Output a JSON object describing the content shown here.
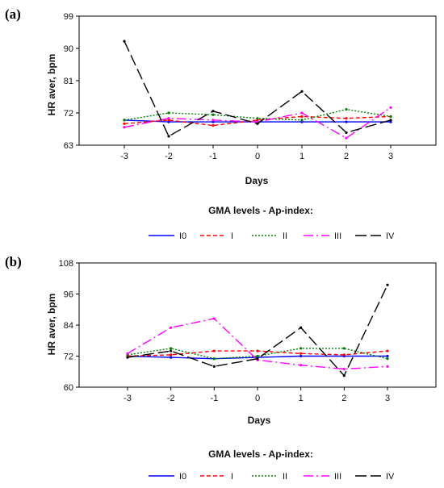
{
  "chart_data": [
    {
      "type": "line",
      "panel_label": "(a)",
      "xlabel": "Days",
      "ylabel": "HR aver, bpm",
      "x": [
        -3,
        -2,
        -1,
        0,
        1,
        2,
        3
      ],
      "x_ticks": [
        "-3",
        "-2",
        "-1",
        "0",
        "1",
        "2",
        "3"
      ],
      "ylim": [
        63,
        99
      ],
      "y_ticks": [
        "63",
        "72",
        "81",
        "90",
        "99"
      ],
      "legend_title": "GMA levels - Ap-index:",
      "series": [
        {
          "name": "I0",
          "color": "#0000ff",
          "dash": "",
          "values": [
            70,
            69.5,
            69.5,
            69.5,
            69.5,
            69.5,
            69.5
          ]
        },
        {
          "name": "I",
          "color": "#ff0000",
          "dash": "5,3",
          "values": [
            69,
            70,
            68.5,
            70,
            71,
            70.5,
            71
          ]
        },
        {
          "name": "II",
          "color": "#008000",
          "dash": "2,2",
          "values": [
            70,
            72,
            71.5,
            70.5,
            70,
            73,
            71
          ]
        },
        {
          "name": "III",
          "color": "#ff00ff",
          "dash": "12,4,2,4",
          "values": [
            68,
            70.5,
            70,
            69.5,
            72,
            65,
            73.5
          ]
        },
        {
          "name": "IV",
          "color": "#000000",
          "dash": "14,5",
          "values": [
            92,
            65.5,
            72.5,
            69,
            78,
            66.5,
            70
          ]
        }
      ]
    },
    {
      "type": "line",
      "panel_label": "(b)",
      "xlabel": "Days",
      "ylabel": "HR aver, bpm",
      "x": [
        -3,
        -2,
        -1,
        0,
        1,
        2,
        3
      ],
      "x_ticks": [
        "-3",
        "-2",
        "-1",
        "0",
        "1",
        "2",
        "3"
      ],
      "ylim": [
        60,
        108
      ],
      "y_ticks": [
        "60",
        "72",
        "84",
        "96",
        "108"
      ],
      "legend_title": "GMA levels - Ap-index:",
      "series": [
        {
          "name": "I0",
          "color": "#0000ff",
          "dash": "",
          "values": [
            72,
            71.5,
            71,
            71.5,
            72,
            72,
            72
          ]
        },
        {
          "name": "I",
          "color": "#ff0000",
          "dash": "5,3",
          "values": [
            72,
            72.5,
            74,
            74,
            73,
            72.5,
            74
          ]
        },
        {
          "name": "II",
          "color": "#008000",
          "dash": "2,2",
          "values": [
            72.5,
            75,
            71,
            72,
            75,
            75,
            71
          ]
        },
        {
          "name": "III",
          "color": "#ff00ff",
          "dash": "12,4,2,4",
          "values": [
            73,
            83,
            86.5,
            70.5,
            68.5,
            67,
            68
          ]
        },
        {
          "name": "IV",
          "color": "#000000",
          "dash": "14,5",
          "values": [
            71.5,
            74,
            68,
            71,
            83,
            64.5,
            99.5
          ]
        }
      ]
    }
  ]
}
